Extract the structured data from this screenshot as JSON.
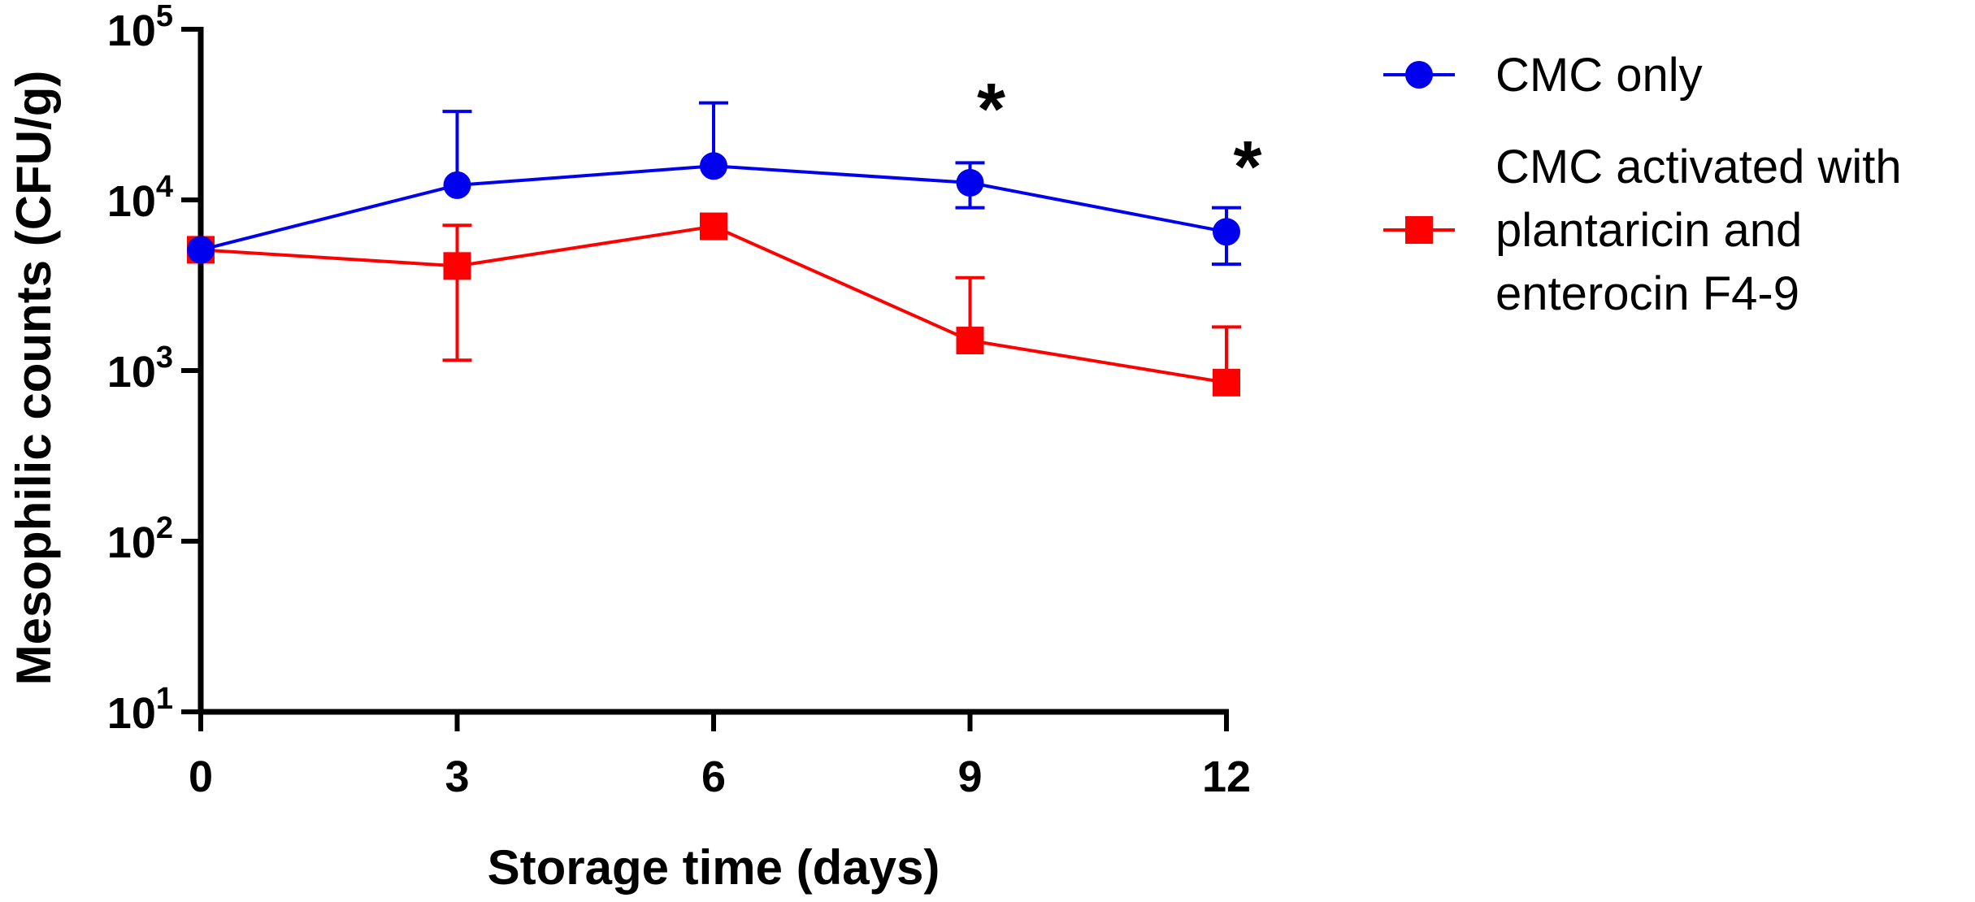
{
  "chart_data": {
    "type": "line",
    "title": "",
    "xlabel": "Storage time (days)",
    "ylabel": "Mesophilic counts (CFU/g)",
    "x": [
      0,
      3,
      6,
      9,
      12
    ],
    "x_tick_labels": [
      "0",
      "3",
      "6",
      "9",
      "12"
    ],
    "xlim": [
      0,
      12
    ],
    "y_scale": "log10",
    "ylim": [
      10,
      100000
    ],
    "y_ticks": [
      {
        "base": "10",
        "exp": "1"
      },
      {
        "base": "10",
        "exp": "2"
      },
      {
        "base": "10",
        "exp": "3"
      },
      {
        "base": "10",
        "exp": "4"
      },
      {
        "base": "10",
        "exp": "5"
      }
    ],
    "legend_position": "right",
    "series": [
      {
        "name": "CMC only",
        "legend_lines": [
          "CMC only"
        ],
        "color": "#0000ee",
        "marker": "circle",
        "values": [
          5100,
          12200,
          15800,
          12600,
          6500
        ],
        "err_upper": [
          5100,
          33000,
          37000,
          16500,
          9000
        ],
        "err_lower": [
          5100,
          12200,
          15800,
          9000,
          4200
        ]
      },
      {
        "name": "CMC activated with plantaricin and enterocin F4-9",
        "legend_lines": [
          "CMC activated with",
          "plantaricin and",
          "enterocin F4-9"
        ],
        "color": "#ff0000",
        "marker": "square",
        "values": [
          5100,
          4100,
          7000,
          1500,
          850
        ],
        "err_upper": [
          5100,
          7100,
          7000,
          3500,
          1800
        ],
        "err_lower": [
          5100,
          1150,
          7000,
          1500,
          850
        ]
      }
    ],
    "annotations": [
      {
        "text": "*",
        "x": 9,
        "y": 48000
      },
      {
        "text": "*",
        "x": 12,
        "y": 22000
      }
    ]
  }
}
